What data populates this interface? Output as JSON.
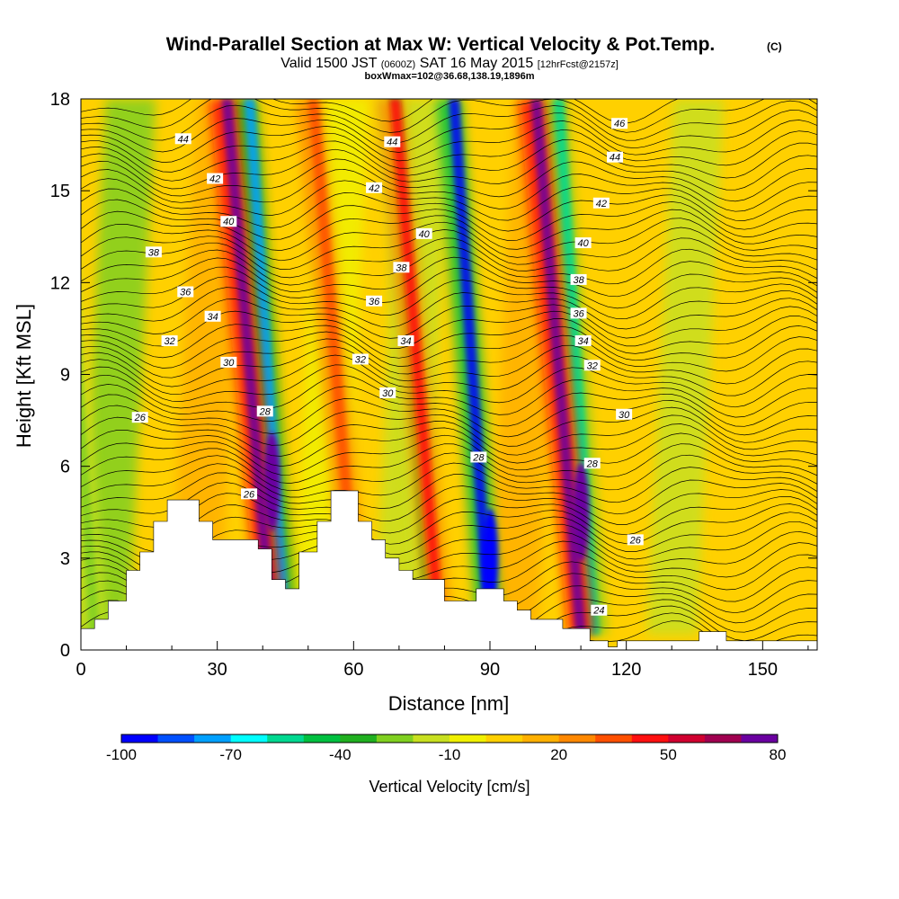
{
  "chart_data": {
    "type": "heatmap",
    "title": "Wind-Parallel Section at Max W: Vertical Velocity & Pot.Temp.",
    "title_mark": "(C)",
    "subtitle": {
      "valid": "Valid 1500 JST",
      "zulu": "(0600Z)",
      "date": "SAT 16 May 2015",
      "forecast": "[12hrFcst@2157z]"
    },
    "box_info": "boxWmax=102@36.68,138.19,1896m",
    "xlabel": "Distance [nm]",
    "ylabel": "Height [Kft MSL]",
    "xlim": [
      0,
      162
    ],
    "ylim": [
      0,
      18
    ],
    "x_ticks": [
      0,
      30,
      60,
      90,
      120,
      150
    ],
    "y_ticks": [
      0,
      3,
      6,
      9,
      12,
      15,
      18
    ],
    "colorbar": {
      "label": "Vertical Velocity [cm/s]",
      "tick_labels": [
        "-100",
        "-70",
        "-40",
        "-10",
        "20",
        "50",
        "80"
      ],
      "tick_values": [
        -100,
        -70,
        -40,
        -10,
        20,
        50,
        80
      ],
      "colors": [
        "#0000ff",
        "#0050ff",
        "#00a0ff",
        "#00ffff",
        "#00d890",
        "#00c040",
        "#20b020",
        "#80d020",
        "#c8e020",
        "#f0f000",
        "#ffd000",
        "#ffb000",
        "#ff8800",
        "#ff5000",
        "#ff1010",
        "#d00030",
        "#a00050",
        "#6a00a0"
      ]
    },
    "updraft_columns": [
      {
        "x": 42,
        "peak_w": 80
      },
      {
        "x": 61,
        "peak_w": 30
      },
      {
        "x": 79,
        "peak_w": 35
      },
      {
        "x": 110,
        "peak_w": 80
      }
    ],
    "downdraft_columns": [
      {
        "x": 45,
        "min_w": -80
      },
      {
        "x": 90,
        "min_w": -100
      },
      {
        "x": 113,
        "min_w": -60
      },
      {
        "x": 77,
        "min_w": -40
      },
      {
        "x": 3,
        "min_w": -35
      }
    ],
    "theta_contours": [
      {
        "value": "24",
        "label_x": 114,
        "label_y": 1.3
      },
      {
        "value": "26",
        "label_x": 13,
        "label_y": 7.6
      },
      {
        "value": "26",
        "label_x": 37,
        "label_y": 5.1
      },
      {
        "value": "26",
        "label_x": 122,
        "label_y": 3.6
      },
      {
        "value": "28",
        "label_x": 40.5,
        "label_y": 7.8
      },
      {
        "value": "28",
        "label_x": 87.5,
        "label_y": 6.3
      },
      {
        "value": "28",
        "label_x": 112.5,
        "label_y": 6.1
      },
      {
        "value": "30",
        "label_x": 32.5,
        "label_y": 9.4
      },
      {
        "value": "30",
        "label_x": 67.5,
        "label_y": 8.4
      },
      {
        "value": "30",
        "label_x": 119.5,
        "label_y": 7.7
      },
      {
        "value": "32",
        "label_x": 19.5,
        "label_y": 10.1
      },
      {
        "value": "32",
        "label_x": 61.5,
        "label_y": 9.5
      },
      {
        "value": "32",
        "label_x": 112.5,
        "label_y": 9.3
      },
      {
        "value": "34",
        "label_x": 29,
        "label_y": 10.9
      },
      {
        "value": "34",
        "label_x": 71.5,
        "label_y": 10.1
      },
      {
        "value": "34",
        "label_x": 110.5,
        "label_y": 10.1
      },
      {
        "value": "36",
        "label_x": 23,
        "label_y": 11.7
      },
      {
        "value": "36",
        "label_x": 64.5,
        "label_y": 11.4
      },
      {
        "value": "36",
        "label_x": 109.5,
        "label_y": 11.0
      },
      {
        "value": "38",
        "label_x": 16,
        "label_y": 13.0
      },
      {
        "value": "38",
        "label_x": 70.5,
        "label_y": 12.5
      },
      {
        "value": "38",
        "label_x": 109.5,
        "label_y": 12.1
      },
      {
        "value": "40",
        "label_x": 32.5,
        "label_y": 14.0
      },
      {
        "value": "40",
        "label_x": 75.5,
        "label_y": 13.6
      },
      {
        "value": "40",
        "label_x": 110.5,
        "label_y": 13.3
      },
      {
        "value": "42",
        "label_x": 29.5,
        "label_y": 15.4
      },
      {
        "value": "42",
        "label_x": 64.5,
        "label_y": 15.1
      },
      {
        "value": "42",
        "label_x": 114.5,
        "label_y": 14.6
      },
      {
        "value": "44",
        "label_x": 22.5,
        "label_y": 16.7
      },
      {
        "value": "44",
        "label_x": 68.5,
        "label_y": 16.6
      },
      {
        "value": "44",
        "label_x": 117.5,
        "label_y": 16.1
      },
      {
        "value": "46",
        "label_x": 118.5,
        "label_y": 17.2
      }
    ],
    "terrain": [
      [
        0,
        0.7
      ],
      [
        3,
        0.7
      ],
      [
        3,
        1
      ],
      [
        6,
        1
      ],
      [
        6,
        1.6
      ],
      [
        10,
        1.6
      ],
      [
        10,
        2.6
      ],
      [
        13,
        2.6
      ],
      [
        13,
        3.2
      ],
      [
        16,
        3.2
      ],
      [
        16,
        4.2
      ],
      [
        19,
        4.2
      ],
      [
        19,
        4.9
      ],
      [
        26,
        4.9
      ],
      [
        26,
        4.2
      ],
      [
        29,
        4.2
      ],
      [
        29,
        3.6
      ],
      [
        39,
        3.6
      ],
      [
        39,
        3.3
      ],
      [
        42,
        3.3
      ],
      [
        42,
        2.3
      ],
      [
        45,
        2.3
      ],
      [
        45,
        2.0
      ],
      [
        48,
        2.0
      ],
      [
        48,
        3.2
      ],
      [
        52,
        3.2
      ],
      [
        52,
        4.2
      ],
      [
        55,
        4.2
      ],
      [
        55,
        5.2
      ],
      [
        61,
        5.2
      ],
      [
        61,
        4.2
      ],
      [
        64,
        4.2
      ],
      [
        64,
        3.6
      ],
      [
        67,
        3.6
      ],
      [
        67,
        3.0
      ],
      [
        70,
        3.0
      ],
      [
        70,
        2.6
      ],
      [
        73,
        2.6
      ],
      [
        73,
        2.3
      ],
      [
        80,
        2.3
      ],
      [
        80,
        1.6
      ],
      [
        87,
        1.6
      ],
      [
        87,
        2.0
      ],
      [
        93,
        2.0
      ],
      [
        93,
        1.6
      ],
      [
        96,
        1.6
      ],
      [
        96,
        1.3
      ],
      [
        99,
        1.3
      ],
      [
        99,
        1.0
      ],
      [
        106,
        1.0
      ],
      [
        106,
        0.7
      ],
      [
        112,
        0.7
      ],
      [
        112,
        0.3
      ],
      [
        116,
        0.3
      ],
      [
        116,
        0.1
      ],
      [
        118,
        0.1
      ],
      [
        118,
        0.3
      ],
      [
        136,
        0.3
      ],
      [
        136,
        0.6
      ],
      [
        142,
        0.6
      ],
      [
        142,
        0.3
      ],
      [
        162,
        0.3
      ]
    ]
  }
}
